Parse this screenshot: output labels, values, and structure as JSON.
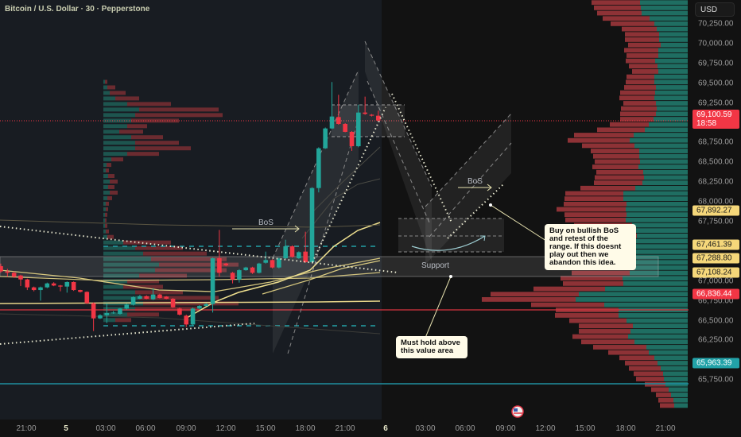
{
  "header": {
    "title": "Bitcoin / U.S. Dollar · 30 · Pepperstone"
  },
  "price_axis": {
    "currency": "USD",
    "labels": [
      {
        "text": "70,250.00",
        "value": 70250
      },
      {
        "text": "70,000.00",
        "value": 70000
      },
      {
        "text": "69,750.00",
        "value": 69750
      },
      {
        "text": "69,500.00",
        "value": 69500
      },
      {
        "text": "69,250.00",
        "value": 69250
      },
      {
        "text": "68,750.00",
        "value": 68750
      },
      {
        "text": "68,500.00",
        "value": 68500
      },
      {
        "text": "68,250.00",
        "value": 68250
      },
      {
        "text": "68,000.00",
        "value": 68000
      },
      {
        "text": "67,750.00",
        "value": 67750
      },
      {
        "text": "67,000.00",
        "value": 67000
      },
      {
        "text": "66,750.00",
        "value": 66750
      },
      {
        "text": "66,500.00",
        "value": 66500
      },
      {
        "text": "66,250.00",
        "value": 66250
      },
      {
        "text": "65,750.00",
        "value": 65750
      }
    ],
    "badges": [
      {
        "text": "69,100.59",
        "sub": "18:58",
        "value": 69100.59,
        "bg": "#f23645",
        "fg": "#ffffff"
      },
      {
        "text": "67,892.27",
        "value": 67892.27,
        "bg": "#f5d77a",
        "fg": "#1a1a1a"
      },
      {
        "text": "67,461.39",
        "value": 67461.39,
        "bg": "#f5d77a",
        "fg": "#1a1a1a"
      },
      {
        "text": "67,288.80",
        "value": 67288.8,
        "bg": "#f5d77a",
        "fg": "#1a1a1a"
      },
      {
        "text": "67,108.24",
        "value": 67108.24,
        "bg": "#f5d77a",
        "fg": "#1a1a1a"
      },
      {
        "text": "66,836.44",
        "value": 66836.44,
        "bg": "#f23645",
        "fg": "#ffffff"
      },
      {
        "text": "65,963.39",
        "value": 65963.39,
        "bg": "#22a2a8",
        "fg": "#ffffff"
      }
    ]
  },
  "time_axis": [
    "21:00",
    "5",
    "03:00",
    "06:00",
    "09:00",
    "12:00",
    "15:00",
    "18:00",
    "21:00",
    "6",
    "03:00",
    "06:00",
    "09:00",
    "12:00",
    "15:00",
    "18:00",
    "21:00"
  ],
  "annotations": {
    "bos_1": "BoS",
    "bos_2": "BoS",
    "support": "Support",
    "note_buy": "Buy on bullish BoS and retest of the range. If this doesnt play out then we abandon this idea.",
    "note_hold": "Must hold above this value area"
  },
  "colors": {
    "up": "#22a69a",
    "down": "#f23645",
    "ma": "#e8d68a",
    "bg_session": "#181c22",
    "bg": "#121212"
  },
  "chart_data": {
    "type": "candlestick",
    "title": "Bitcoin / U.S. Dollar · 30 · Pepperstone",
    "interval": "30m",
    "ylim": [
      65600,
      70550
    ],
    "last_price": 69100.59,
    "ohlc": [
      [
        67188,
        67221,
        67104,
        67121
      ],
      [
        67121,
        67154,
        67054,
        67104
      ],
      [
        67104,
        67121,
        67040,
        67054
      ],
      [
        67070,
        67080,
        66937,
        67020
      ],
      [
        67020,
        67030,
        66886,
        66920
      ],
      [
        66920,
        66930,
        66870,
        66886
      ],
      [
        66886,
        66930,
        66752,
        66920
      ],
      [
        66920,
        66980,
        66910,
        66970
      ],
      [
        66970,
        66985,
        66935,
        66943
      ],
      [
        66943,
        66950,
        66870,
        66930
      ],
      [
        66930,
        66995,
        66853,
        66987
      ],
      [
        66987,
        66995,
        66875,
        66886
      ],
      [
        66886,
        66890,
        66855,
        66863
      ],
      [
        66863,
        66870,
        66710,
        66719
      ],
      [
        66719,
        66730,
        66368,
        66528
      ],
      [
        66528,
        66580,
        66520,
        66568
      ],
      [
        66568,
        66719,
        66468,
        66595
      ],
      [
        66595,
        66620,
        66585,
        66602
      ],
      [
        66585,
        66660,
        66575,
        66652
      ],
      [
        66652,
        66715,
        66640,
        66702
      ],
      [
        66702,
        66805,
        66690,
        66796
      ],
      [
        66776,
        66825,
        66770,
        66809
      ],
      [
        66809,
        66820,
        66770,
        66776
      ],
      [
        66769,
        66910,
        66760,
        66829
      ],
      [
        66829,
        66840,
        66780,
        66786
      ],
      [
        66803,
        66810,
        66770,
        66776
      ],
      [
        66776,
        66785,
        66660,
        66669
      ],
      [
        66652,
        66665,
        66565,
        66575
      ],
      [
        66562,
        66575,
        66418,
        66451
      ],
      [
        66451,
        66665,
        66440,
        66652
      ],
      [
        66652,
        66695,
        66640,
        66686
      ],
      [
        66686,
        66720,
        66680,
        66709
      ],
      [
        66709,
        67295,
        66602,
        67288
      ],
      [
        67288,
        67646,
        67054,
        67104
      ],
      [
        67221,
        67230,
        67185,
        67198
      ],
      [
        67104,
        67115,
        66970,
        67020
      ],
      [
        67020,
        67150,
        66980,
        67137
      ],
      [
        67137,
        67180,
        67130,
        67171
      ],
      [
        67171,
        67180,
        67090,
        67104
      ],
      [
        67104,
        67230,
        67095,
        67221
      ],
      [
        67231,
        67372,
        67220,
        67265
      ],
      [
        67265,
        67275,
        67160,
        67171
      ],
      [
        67171,
        67295,
        67160,
        67285
      ],
      [
        67288,
        67522,
        67280,
        67439
      ],
      [
        67439,
        67450,
        67295,
        67305
      ],
      [
        67288,
        67375,
        67280,
        67365
      ],
      [
        67372,
        67623,
        67230,
        67238
      ],
      [
        67238,
        68185,
        67230,
        68175
      ],
      [
        68175,
        68690,
        68120,
        68677
      ],
      [
        68677,
        68940,
        68670,
        68928
      ],
      [
        68928,
        69514,
        68920,
        69079
      ],
      [
        69072,
        69353,
        68975,
        68985
      ],
      [
        68985,
        68995,
        68880,
        68885
      ],
      [
        68885,
        68895,
        68644,
        68704
      ],
      [
        68704,
        69229,
        68690,
        69129
      ],
      [
        69129,
        69330,
        69100,
        69112
      ],
      [
        69102,
        69110,
        69080,
        69089
      ],
      [
        69089,
        69152,
        69020,
        69028
      ]
    ],
    "key_levels": {
      "support_zone": [
        67030,
        67300
      ],
      "range_high": 69230,
      "range_low": 68830,
      "value_area_high": 67620,
      "value_area_low": 66620,
      "red_level": 66836.44,
      "teal_level": 65963.39
    },
    "volume_profile": {
      "top_price": 70518,
      "step": 67,
      "rows_sell_buy": [
        [
          61,
          60
        ],
        [
          59,
          59
        ],
        [
          56,
          58
        ],
        [
          59,
          48
        ],
        [
          55,
          42
        ],
        [
          44,
          39
        ],
        [
          43,
          36
        ],
        [
          43,
          36
        ],
        [
          41,
          34
        ],
        [
          43,
          37
        ],
        [
          40,
          37
        ],
        [
          37,
          41
        ],
        [
          36,
          38
        ],
        [
          33,
          37
        ],
        [
          35,
          42
        ],
        [
          36,
          42
        ],
        [
          40,
          40
        ],
        [
          44,
          41
        ],
        [
          44,
          42
        ],
        [
          41,
          40
        ],
        [
          45,
          39
        ],
        [
          45,
          40
        ],
        [
          42,
          43
        ],
        [
          49,
          49
        ],
        [
          60,
          54
        ],
        [
          75,
          68
        ],
        [
          78,
          73
        ],
        [
          66,
          67
        ],
        [
          61,
          61
        ],
        [
          58,
          61
        ],
        [
          57,
          60
        ],
        [
          58,
          62
        ],
        [
          59,
          56
        ],
        [
          62,
          55
        ],
        [
          61,
          57
        ],
        [
          69,
          66
        ],
        [
          73,
          81
        ],
        [
          74,
          81
        ],
        [
          79,
          77
        ],
        [
          87,
          78
        ],
        [
          78,
          77
        ],
        [
          76,
          78
        ],
        [
          73,
          70
        ],
        [
          78,
          65
        ],
        [
          79,
          64
        ],
        [
          77,
          67
        ],
        [
          73,
          70
        ],
        [
          73,
          71
        ],
        [
          72,
          72
        ],
        [
          92,
          82
        ],
        [
          82,
          67
        ],
        [
          73,
          73
        ],
        [
          78,
          82
        ],
        [
          76,
          81
        ],
        [
          90,
          104
        ],
        [
          111,
          137
        ],
        [
          118,
          141
        ],
        [
          92,
          105
        ],
        [
          79,
          87
        ],
        [
          80,
          87
        ],
        [
          72,
          77
        ],
        [
          68,
          69
        ],
        [
          65,
          72
        ],
        [
          70,
          75
        ],
        [
          67,
          67
        ],
        [
          67,
          52
        ],
        [
          51,
          49
        ],
        [
          44,
          42
        ],
        [
          41,
          38
        ],
        [
          40,
          34
        ],
        [
          37,
          31
        ],
        [
          35,
          30
        ],
        [
          26,
          28
        ],
        [
          22,
          24
        ],
        [
          19,
          21
        ],
        [
          19,
          18
        ],
        [
          18,
          17
        ]
      ]
    },
    "session_profile": {
      "top_price": 69517,
      "step": 70,
      "rows_buy_sell": [
        [
          2,
          3
        ],
        [
          5,
          10
        ],
        [
          8,
          20
        ],
        [
          15,
          30
        ],
        [
          30,
          55
        ],
        [
          45,
          100
        ],
        [
          40,
          110
        ],
        [
          35,
          60
        ],
        [
          30,
          25
        ],
        [
          20,
          30
        ],
        [
          35,
          40
        ],
        [
          40,
          55
        ],
        [
          40,
          70
        ],
        [
          30,
          40
        ],
        [
          10,
          15
        ],
        [
          4,
          6
        ],
        [
          3,
          4
        ],
        [
          6,
          8
        ],
        [
          8,
          10
        ],
        [
          6,
          8
        ],
        [
          8,
          10
        ],
        [
          5,
          6
        ],
        [
          3,
          4
        ],
        [
          3,
          3
        ],
        [
          2,
          3
        ],
        [
          2,
          2
        ],
        [
          2,
          3
        ],
        [
          3,
          4
        ],
        [
          5,
          8
        ],
        [
          25,
          60
        ],
        [
          40,
          60
        ],
        [
          50,
          80
        ],
        [
          60,
          95
        ],
        [
          70,
          100
        ],
        [
          65,
          90
        ],
        [
          45,
          60
        ],
        [
          30,
          40
        ],
        [
          25,
          50
        ],
        [
          40,
          60
        ],
        [
          45,
          100
        ],
        [
          50,
          120
        ],
        [
          40,
          80
        ],
        [
          30,
          40
        ],
        [
          15,
          20
        ]
      ]
    }
  }
}
